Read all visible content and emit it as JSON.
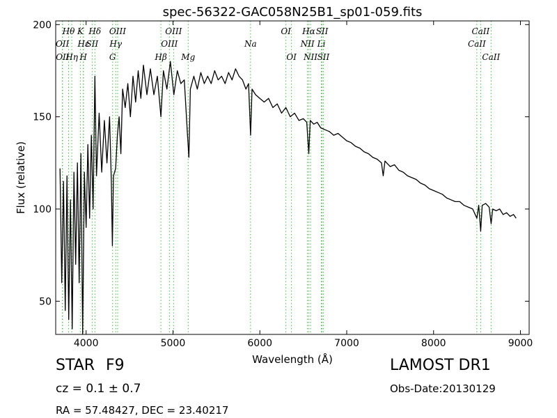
{
  "chart_data": {
    "type": "line",
    "title": "spec-56322-GAC058N25B1_sp01-059.fits",
    "xlabel": "Wavelength (Å)",
    "ylabel": "Flux (relative)",
    "xlim": [
      3650,
      9100
    ],
    "ylim": [
      32,
      202
    ],
    "x_ticks": [
      4000,
      5000,
      6000,
      7000,
      8000,
      9000
    ],
    "y_ticks": [
      50,
      100,
      150,
      200
    ],
    "line_color": "#000000",
    "marker_color": "#44bb44",
    "spectrum": [
      [
        3700,
        122
      ],
      [
        3720,
        60
      ],
      [
        3740,
        115
      ],
      [
        3760,
        45
      ],
      [
        3780,
        118
      ],
      [
        3800,
        40
      ],
      [
        3820,
        105
      ],
      [
        3840,
        35
      ],
      [
        3860,
        120
      ],
      [
        3880,
        70
      ],
      [
        3900,
        125
      ],
      [
        3920,
        60
      ],
      [
        3940,
        130
      ],
      [
        3960,
        30
      ],
      [
        3980,
        120
      ],
      [
        4000,
        90
      ],
      [
        4020,
        135
      ],
      [
        4040,
        95
      ],
      [
        4060,
        140
      ],
      [
        4080,
        100
      ],
      [
        4101,
        172
      ],
      [
        4120,
        118
      ],
      [
        4150,
        152
      ],
      [
        4180,
        120
      ],
      [
        4210,
        148
      ],
      [
        4240,
        125
      ],
      [
        4270,
        150
      ],
      [
        4290,
        115
      ],
      [
        4302,
        80
      ],
      [
        4315,
        118
      ],
      [
        4340,
        122
      ],
      [
        4360,
        140
      ],
      [
        4380,
        150
      ],
      [
        4400,
        130
      ],
      [
        4420,
        165
      ],
      [
        4450,
        155
      ],
      [
        4480,
        168
      ],
      [
        4510,
        150
      ],
      [
        4540,
        172
      ],
      [
        4570,
        158
      ],
      [
        4600,
        175
      ],
      [
        4630,
        160
      ],
      [
        4660,
        178
      ],
      [
        4700,
        162
      ],
      [
        4740,
        176
      ],
      [
        4780,
        162
      ],
      [
        4820,
        172
      ],
      [
        4861,
        150
      ],
      [
        4890,
        175
      ],
      [
        4930,
        165
      ],
      [
        4970,
        180
      ],
      [
        5010,
        162
      ],
      [
        5050,
        175
      ],
      [
        5090,
        168
      ],
      [
        5130,
        170
      ],
      [
        5167,
        140
      ],
      [
        5183,
        128
      ],
      [
        5200,
        165
      ],
      [
        5240,
        172
      ],
      [
        5280,
        165
      ],
      [
        5320,
        174
      ],
      [
        5360,
        168
      ],
      [
        5400,
        172
      ],
      [
        5440,
        168
      ],
      [
        5480,
        175
      ],
      [
        5520,
        170
      ],
      [
        5560,
        172
      ],
      [
        5600,
        168
      ],
      [
        5640,
        174
      ],
      [
        5680,
        170
      ],
      [
        5720,
        176
      ],
      [
        5760,
        172
      ],
      [
        5800,
        170
      ],
      [
        5840,
        165
      ],
      [
        5870,
        168
      ],
      [
        5893,
        140
      ],
      [
        5910,
        165
      ],
      [
        5950,
        162
      ],
      [
        6000,
        160
      ],
      [
        6050,
        158
      ],
      [
        6100,
        160
      ],
      [
        6150,
        155
      ],
      [
        6200,
        157
      ],
      [
        6250,
        152
      ],
      [
        6300,
        155
      ],
      [
        6350,
        150
      ],
      [
        6400,
        152
      ],
      [
        6450,
        148
      ],
      [
        6500,
        149
      ],
      [
        6540,
        147
      ],
      [
        6563,
        130
      ],
      [
        6580,
        148
      ],
      [
        6620,
        146
      ],
      [
        6660,
        147
      ],
      [
        6700,
        144
      ],
      [
        6750,
        143
      ],
      [
        6800,
        142
      ],
      [
        6850,
        140
      ],
      [
        6900,
        141
      ],
      [
        6950,
        139
      ],
      [
        7000,
        137
      ],
      [
        7050,
        136
      ],
      [
        7100,
        134
      ],
      [
        7150,
        133
      ],
      [
        7200,
        131
      ],
      [
        7250,
        130
      ],
      [
        7300,
        128
      ],
      [
        7350,
        127
      ],
      [
        7400,
        125
      ],
      [
        7420,
        118
      ],
      [
        7440,
        126
      ],
      [
        7500,
        123
      ],
      [
        7550,
        124
      ],
      [
        7600,
        121
      ],
      [
        7650,
        120
      ],
      [
        7700,
        118
      ],
      [
        7750,
        117
      ],
      [
        7800,
        116
      ],
      [
        7850,
        114
      ],
      [
        7900,
        113
      ],
      [
        7950,
        111
      ],
      [
        8000,
        110
      ],
      [
        8050,
        109
      ],
      [
        8100,
        108
      ],
      [
        8150,
        106
      ],
      [
        8200,
        105
      ],
      [
        8250,
        104
      ],
      [
        8300,
        104
      ],
      [
        8350,
        102
      ],
      [
        8400,
        101
      ],
      [
        8450,
        100
      ],
      [
        8498,
        95
      ],
      [
        8520,
        102
      ],
      [
        8542,
        88
      ],
      [
        8560,
        102
      ],
      [
        8600,
        103
      ],
      [
        8640,
        101
      ],
      [
        8662,
        92
      ],
      [
        8680,
        100
      ],
      [
        8720,
        99
      ],
      [
        8760,
        100
      ],
      [
        8800,
        97
      ],
      [
        8840,
        98
      ],
      [
        8880,
        96
      ],
      [
        8920,
        97
      ],
      [
        8950,
        95
      ]
    ],
    "emission_lines": [
      {
        "label": "Hθ",
        "lambda": 3798,
        "row": 1
      },
      {
        "label": "OII",
        "lambda": 3727,
        "row": 2
      },
      {
        "label": "OII",
        "lambda": 3729,
        "row": 3
      },
      {
        "label": "Hη",
        "lambda": 3835,
        "row": 3
      },
      {
        "label": "K",
        "lambda": 3934,
        "row": 1
      },
      {
        "label": "Hε",
        "lambda": 3970,
        "row": 2
      },
      {
        "label": "SII",
        "lambda": 4070,
        "row": 2
      },
      {
        "label": "H",
        "lambda": 3968,
        "row": 3
      },
      {
        "label": "Hδ",
        "lambda": 4101,
        "row": 1
      },
      {
        "label": "OIII",
        "lambda": 4363,
        "row": 1
      },
      {
        "label": "Hγ",
        "lambda": 4341,
        "row": 2
      },
      {
        "label": "G",
        "lambda": 4305,
        "row": 3
      },
      {
        "label": "OIII",
        "lambda": 5007,
        "row": 1
      },
      {
        "label": "OIII",
        "lambda": 4959,
        "row": 2
      },
      {
        "label": "Hβ",
        "lambda": 4861,
        "row": 3
      },
      {
        "label": "Mg",
        "lambda": 5175,
        "row": 3
      },
      {
        "label": "Na",
        "lambda": 5893,
        "row": 2
      },
      {
        "label": "OI",
        "lambda": 6300,
        "row": 1
      },
      {
        "label": "OI",
        "lambda": 6364,
        "row": 3
      },
      {
        "label": "Hα",
        "lambda": 6563,
        "row": 1
      },
      {
        "label": "NII",
        "lambda": 6548,
        "row": 2
      },
      {
        "label": "NII",
        "lambda": 6583,
        "row": 3
      },
      {
        "label": "SII",
        "lambda": 6716,
        "row": 1
      },
      {
        "label": "Li",
        "lambda": 6708,
        "row": 2
      },
      {
        "label": "SII",
        "lambda": 6731,
        "row": 3
      },
      {
        "label": "CaII",
        "lambda": 8542,
        "row": 1
      },
      {
        "label": "CaII",
        "lambda": 8498,
        "row": 2
      },
      {
        "label": "CaII",
        "lambda": 8662,
        "row": 3
      }
    ]
  },
  "info": {
    "object_type": "STAR",
    "subclass": "F9",
    "survey": "LAMOST DR1",
    "cz": "cz = 0.1 ± 0.7",
    "obs_date": "Obs-Date:20130129",
    "ra_dec": "RA = 57.48427, DEC = 23.40217"
  }
}
